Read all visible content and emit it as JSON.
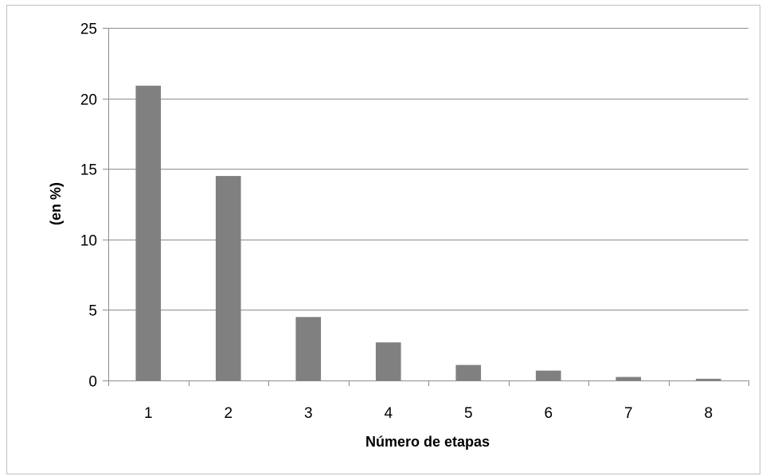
{
  "chart_data": {
    "type": "bar",
    "title": "",
    "xlabel": "Número de etapas",
    "ylabel": "(en %)",
    "categories": [
      "1",
      "2",
      "3",
      "4",
      "5",
      "6",
      "7",
      "8"
    ],
    "values": [
      20.9,
      14.5,
      4.5,
      2.7,
      1.1,
      0.7,
      0.25,
      0.12
    ],
    "ylim": [
      0,
      25
    ],
    "yticks": [
      "0",
      "5",
      "10",
      "15",
      "20",
      "25"
    ],
    "grid": true,
    "legend": "none",
    "colors": {
      "bar": "#808080",
      "grid": "#8c8c8c",
      "axis": "#8c8c8c"
    }
  }
}
